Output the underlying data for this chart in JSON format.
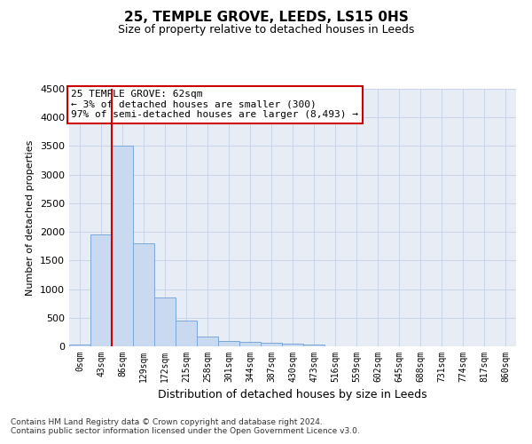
{
  "title": "25, TEMPLE GROVE, LEEDS, LS15 0HS",
  "subtitle": "Size of property relative to detached houses in Leeds",
  "xlabel": "Distribution of detached houses by size in Leeds",
  "ylabel": "Number of detached properties",
  "bin_labels": [
    "0sqm",
    "43sqm",
    "86sqm",
    "129sqm",
    "172sqm",
    "215sqm",
    "258sqm",
    "301sqm",
    "344sqm",
    "387sqm",
    "430sqm",
    "473sqm",
    "516sqm",
    "559sqm",
    "602sqm",
    "645sqm",
    "688sqm",
    "731sqm",
    "774sqm",
    "817sqm",
    "860sqm"
  ],
  "bar_heights": [
    30,
    1950,
    3500,
    1800,
    850,
    450,
    175,
    100,
    75,
    60,
    50,
    30,
    0,
    0,
    0,
    0,
    0,
    0,
    0,
    0,
    0
  ],
  "bar_color": "#c9d9f0",
  "bar_edge_color": "#7aa8d8",
  "vline_x": 1.5,
  "vline_color": "#cc0000",
  "annotation_text": "25 TEMPLE GROVE: 62sqm\n← 3% of detached houses are smaller (300)\n97% of semi-detached houses are larger (8,493) →",
  "annotation_box_color": "#ffffff",
  "annotation_box_edge": "#cc0000",
  "ylim": [
    0,
    4500
  ],
  "yticks": [
    0,
    500,
    1000,
    1500,
    2000,
    2500,
    3000,
    3500,
    4000,
    4500
  ],
  "footnote": "Contains HM Land Registry data © Crown copyright and database right 2024.\nContains public sector information licensed under the Open Government Licence v3.0.",
  "grid_color": "#c8d4e8",
  "bg_color": "#e8edf5",
  "title_fontsize": 11,
  "subtitle_fontsize": 9,
  "annotation_fontsize": 8,
  "ylabel_fontsize": 8,
  "xlabel_fontsize": 9
}
